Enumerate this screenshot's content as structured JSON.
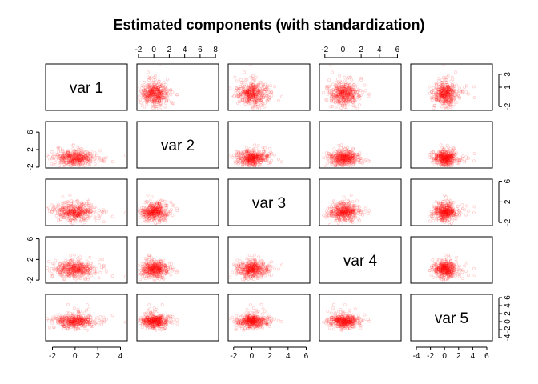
{
  "chart_data": {
    "type": "scatter",
    "title": "Estimated components (with standardization)",
    "variables": [
      "var 1",
      "var 2",
      "var 3",
      "var 4",
      "var 5"
    ],
    "point_color": "#ff0000",
    "points_per_panel": 400,
    "axis_ticks": {
      "var 1": [
        -2,
        1,
        3
      ],
      "var 2": [
        -2,
        0,
        2,
        4,
        6,
        8
      ],
      "var 3": [
        -2,
        2,
        6
      ],
      "var 4": [
        -2,
        0,
        2,
        4,
        6
      ],
      "var 5": [
        -4,
        -2,
        0,
        2,
        4,
        6
      ]
    },
    "axis_tick_labels": {
      "var 1": [
        "-2",
        "1",
        "3"
      ],
      "var 2": [
        "-2",
        "0",
        "2",
        "4",
        "6",
        "8"
      ],
      "var 3": [
        "-2",
        "2",
        "6"
      ],
      "var 4": [
        "-2",
        "0",
        "2",
        "4",
        "6"
      ],
      "var 5": [
        "-4",
        "-2",
        "0",
        "2",
        "4",
        "6"
      ]
    },
    "axis_ranges": {
      "var 1": [
        -2.6,
        4.6
      ],
      "var 2": [
        -2.2,
        8.4
      ],
      "var 3": [
        -2.6,
        6.4
      ],
      "var 4": [
        -2.6,
        6.4
      ],
      "var 5": [
        -4.8,
        6.8
      ]
    },
    "bottom_axis_ticks": {
      "var 1": [
        -2,
        0,
        2,
        4
      ],
      "var 3": [
        -2,
        0,
        2,
        4,
        6
      ],
      "var 5": [
        -4,
        -2,
        0,
        2,
        4,
        6
      ]
    },
    "bottom_axis_tick_labels": {
      "var 1": [
        "-2",
        "0",
        "2",
        "4"
      ],
      "var 3": [
        "-2",
        "0",
        "2",
        "4",
        "6"
      ],
      "var 5": [
        "-4",
        "-2",
        "0",
        "2",
        "4",
        "6"
      ]
    },
    "grid": false,
    "legend": "none"
  }
}
